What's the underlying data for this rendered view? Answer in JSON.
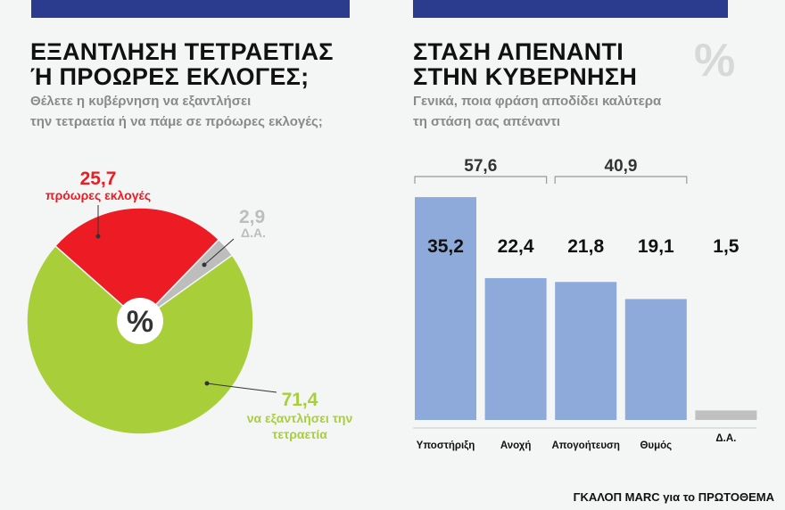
{
  "colors": {
    "header_bar": "#2b3c8e",
    "red": "#ed1c24",
    "green": "#a8cf3a",
    "grey": "#bdbdbd",
    "blue_bar": "#8eaadb",
    "na_bar": "#c0c0c0"
  },
  "left": {
    "title_line1": "ΕΞΑΝΤΛΗΣΗ ΤΕΤΡΑΕΤΙΑΣ",
    "title_line2": "Ή ΠΡΟΩΡΕΣ ΕΚΛΟΓΕΣ;",
    "subtitle_line1": "Θέλετε η κυβέρνηση να εξαντλήσει",
    "subtitle_line2": "την τετραετία ή να πάμε σε πρόωρες εκλογές;",
    "center_symbol": "%"
  },
  "right": {
    "title_line1": "ΣΤΑΣΗ ΑΠΕΝΑΝΤΙ",
    "title_line2": "ΣΤΗΝ ΚΥΒΕΡΝΗΣΗ",
    "subtitle_line1": "Γενικά, ποια φράση αποδίδει καλύτερα",
    "subtitle_line2": "τη στάση σας απέναντι",
    "watermark": "%"
  },
  "source": "ΓΚΑΛΟΠ MARC για το ΠΡΩΤΟΘΕΜΑ",
  "chart_data": [
    {
      "type": "pie",
      "unit": "%",
      "slices": [
        {
          "label": "πρόωρες εκλογές",
          "value": 25.7,
          "value_label": "25,7",
          "color": "#ed1c24"
        },
        {
          "label": "Δ.Α.",
          "value": 2.9,
          "value_label": "2,9",
          "color": "#bdbdbd"
        },
        {
          "label": "να εξαντλήσει την τετραετία",
          "label_line1": "να εξαντλήσει την",
          "label_line2": "τετραετία",
          "value": 71.4,
          "value_label": "71,4",
          "color": "#a8cf3a"
        }
      ]
    },
    {
      "type": "bar",
      "categories": [
        "Υποστήριξη",
        "Ανοχή",
        "Απογοήτευση",
        "Θυμός",
        "Δ.Α."
      ],
      "values": [
        35.2,
        22.4,
        21.8,
        19.1,
        1.5
      ],
      "value_labels": [
        "35,2",
        "22,4",
        "21,8",
        "19,1",
        "1,5"
      ],
      "groups": [
        {
          "label": "57,6",
          "value": 57.6,
          "from": 0,
          "to": 1
        },
        {
          "label": "40,9",
          "value": 40.9,
          "from": 2,
          "to": 3
        }
      ]
    }
  ]
}
